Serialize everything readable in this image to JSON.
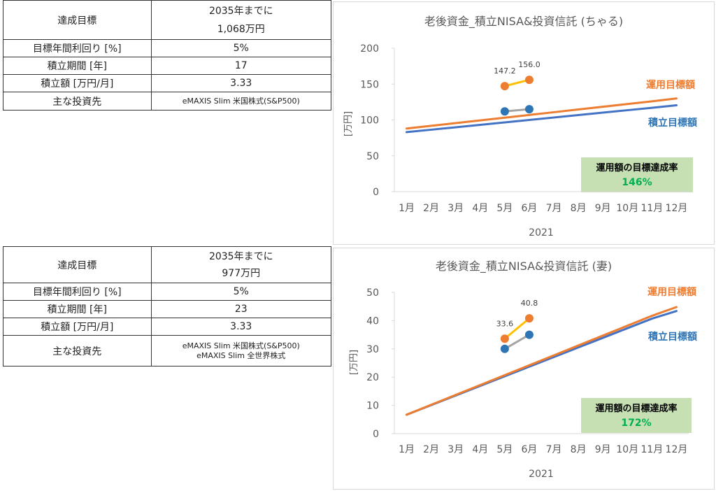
{
  "tables": [
    {
      "rows": [
        {
          "label": "達成目標",
          "value_line1": "2035年までに",
          "value_line2": "1,068万円"
        },
        {
          "label": "目標年間利回り [%]",
          "value": "5%"
        },
        {
          "label": "積立期間 [年]",
          "value": "17"
        },
        {
          "label": "積立額 [万円/月]",
          "value": "3.33"
        },
        {
          "label": "主な投資先",
          "value": "eMAXIS Slim 米国株式(S&P500)"
        }
      ]
    },
    {
      "rows": [
        {
          "label": "達成目標",
          "value_line1": "2035年までに",
          "value_line2": "977万円"
        },
        {
          "label": "目標年間利回り [%]",
          "value": "5%"
        },
        {
          "label": "積立期間 [年]",
          "value": "23"
        },
        {
          "label": "積立額 [万円/月]",
          "value": "3.33"
        },
        {
          "label": "主な投資先",
          "value_line1": "eMAXIS Slim 米国株式(S&P500)",
          "value_line2": "eMAXIS Slim 全世界株式"
        }
      ]
    }
  ],
  "chart_data": [
    {
      "type": "line",
      "title": "老後資金_積立NISA&投資信託 (ちゃる)",
      "ylabel": "[万円]",
      "xlabel": "2021",
      "ylim": [
        0,
        200
      ],
      "yticks": [
        "0",
        "50",
        "100",
        "150",
        "200"
      ],
      "categories": [
        "1月",
        "2月",
        "3月",
        "4月",
        "5月",
        "6月",
        "7月",
        "8月",
        "9月",
        "10月",
        "11月",
        "12月"
      ],
      "grid": false,
      "series": [
        {
          "name": "運用目標額",
          "color": "#ED7D31",
          "values": [
            88.0,
            91.8,
            95.6,
            99.4,
            103.2,
            107.0,
            110.8,
            114.6,
            118.4,
            122.2,
            126.0,
            130.0
          ]
        },
        {
          "name": "積立目標額",
          "color": "#4472C4",
          "values": [
            83.0,
            86.4,
            89.8,
            93.2,
            96.6,
            100.0,
            103.4,
            106.8,
            110.2,
            113.6,
            117.0,
            120.5
          ]
        },
        {
          "name": "",
          "color": "#ED7D31",
          "line_color": "#FFC000",
          "x": [
            "5月",
            "6月"
          ],
          "values": [
            147.2,
            156.0
          ],
          "labels": [
            "147.2",
            "156.0"
          ]
        },
        {
          "name": "",
          "color": "#2E75B6",
          "line_color": "#A5A5A5",
          "x": [
            "5月",
            "6月"
          ],
          "values": [
            112.0,
            115.0
          ]
        }
      ],
      "annotation": {
        "line1": "運用額の目標達成率",
        "line2": "146%"
      }
    },
    {
      "type": "line",
      "title": "老後資金_積立NISA&投資信託 (妻)",
      "ylabel": "[万円]",
      "xlabel": "2021",
      "ylim": [
        0,
        50
      ],
      "yticks": [
        "0",
        "10",
        "20",
        "30",
        "40",
        "50"
      ],
      "categories": [
        "1月",
        "2月",
        "3月",
        "4月",
        "5月",
        "6月",
        "7月",
        "8月",
        "9月",
        "10月",
        "11月",
        "12月"
      ],
      "grid": false,
      "series": [
        {
          "name": "運用目標額",
          "color": "#ED7D31",
          "values": [
            6.7,
            10.2,
            13.7,
            17.2,
            20.7,
            24.2,
            27.7,
            31.2,
            34.7,
            38.2,
            41.7,
            44.8
          ]
        },
        {
          "name": "積立目標額",
          "color": "#4472C4",
          "values": [
            6.7,
            10.1,
            13.5,
            16.9,
            20.3,
            23.7,
            27.1,
            30.5,
            33.9,
            37.3,
            40.7,
            43.4
          ]
        },
        {
          "name": "",
          "color": "#ED7D31",
          "line_color": "#FFC000",
          "x": [
            "5月",
            "6月"
          ],
          "values": [
            33.6,
            40.8
          ],
          "labels": [
            "33.6",
            "40.8"
          ]
        },
        {
          "name": "",
          "color": "#2E75B6",
          "line_color": "#A5A5A5",
          "x": [
            "5月",
            "6月"
          ],
          "values": [
            30.0,
            35.0
          ]
        }
      ],
      "annotation": {
        "line1": "運用額の目標達成率",
        "line2": "172%"
      }
    }
  ],
  "colors": {
    "orange": "#ED7D31",
    "blue": "#4472C4",
    "dot_blue": "#2E75B6",
    "yellow": "#FFC000",
    "gray": "#A5A5A5",
    "label_orange": "#ED7D31",
    "label_blue": "#2E75B6",
    "annotation_bg": "#C6E0B4",
    "annotation_pct": "#00B050"
  }
}
